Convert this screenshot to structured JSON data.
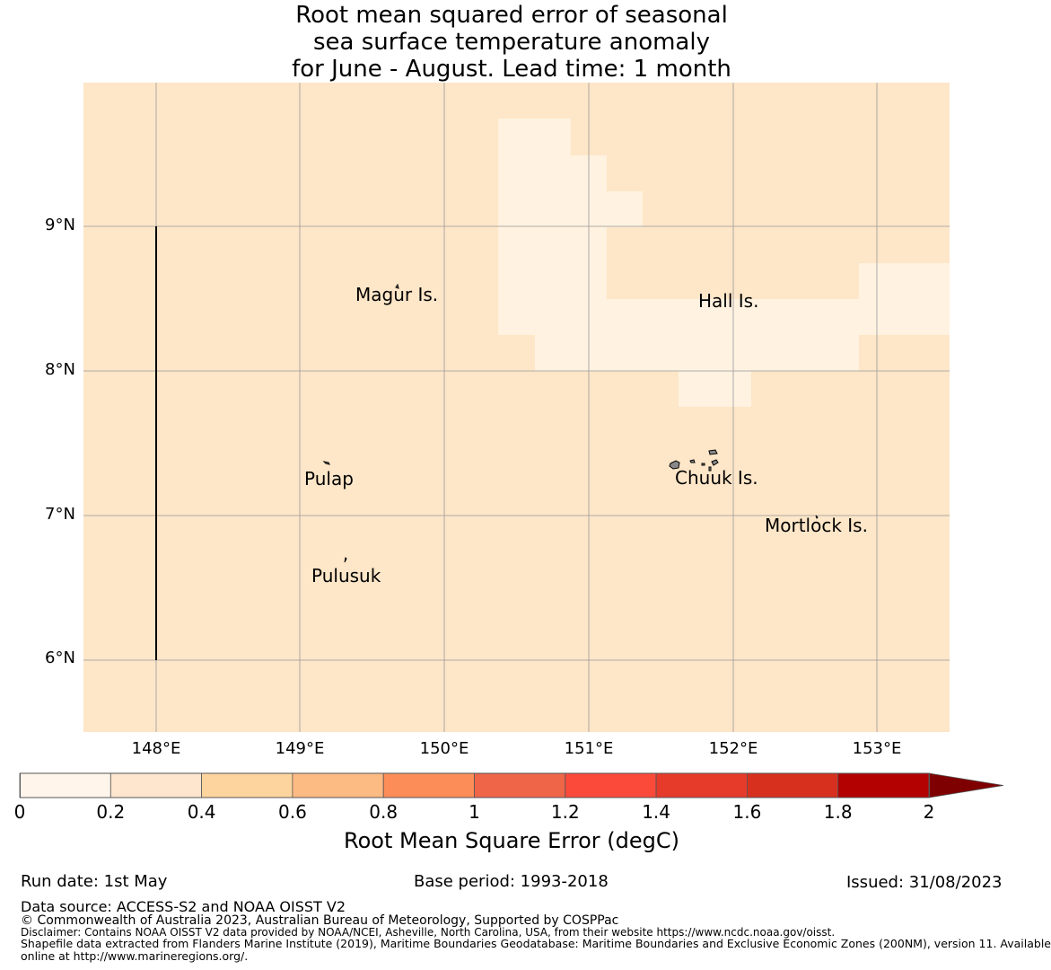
{
  "title": {
    "line1": "Root mean squared error of seasonal",
    "line2": "sea surface temperature anomaly",
    "line3": "for June - August. Lead time: 1 month"
  },
  "colors": {
    "background_field": "#fee6c8",
    "low_error_cells": "#fff2e0",
    "grid_line": "#999999",
    "island_fill": "#888888"
  },
  "map": {
    "lat_labels": [
      "9°N",
      "8°N",
      "7°N",
      "6°N"
    ],
    "lon_labels": [
      "148°E",
      "149°E",
      "150°E",
      "151°E",
      "152°E",
      "153°E"
    ],
    "places": [
      "Magur Is.",
      "Hall Is.",
      "Pulap",
      "Chuuk Is.",
      "Mortlock Is.",
      "Pulusuk"
    ]
  },
  "colorbar": {
    "ticks": [
      "0",
      "0.2",
      "0.4",
      "0.6",
      "0.8",
      "1",
      "1.2",
      "1.4",
      "1.6",
      "1.8",
      "2"
    ],
    "colors": [
      "#fff5eb",
      "#fee6ce",
      "#fdd49e",
      "#fdbb84",
      "#fc8d59",
      "#ef6548",
      "#fb4a3a",
      "#e63a2a",
      "#d7301f",
      "#b30000",
      "#7f0000"
    ],
    "label": "Root Mean Square Error (degC)"
  },
  "footer": {
    "run_date": "Run date: 1st May",
    "base_period": "Base period: 1993-2018",
    "issued": "Issued: 31/08/2023",
    "data_source": "Data source: ACCESS-S2 and NOAA OISST V2",
    "copyright": "© Commonwealth of Australia 2023, Australian Bureau of Meteorology, Supported by COSPPac",
    "disclaimer": "Disclaimer: Contains NOAA OISST V2 data provided by NOAA/NCEI, Asheville, North Carolina, USA, from their website https://www.ncdc.noaa.gov/oisst.",
    "shapefile1": "Shapefile data extracted from Flanders Marine Institute (2019), Maritime Boundaries Geodatabase: Maritime Boundaries and Exclusive Economic Zones (200NM), version 11. Available",
    "shapefile2": "online at http://www.marineregions.org/."
  }
}
